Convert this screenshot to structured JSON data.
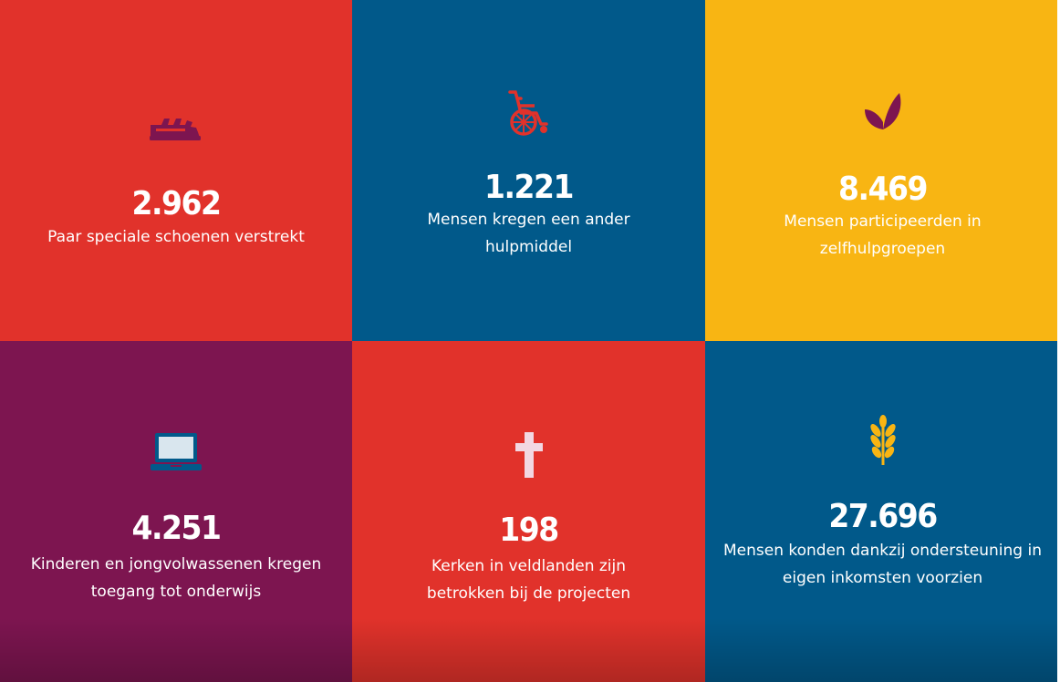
{
  "stats": [
    {
      "number": "2.962",
      "description": "Paar speciale schoenen verstrekt",
      "icon": "sandal-icon",
      "color": "#e1322b"
    },
    {
      "number": "1.221",
      "description": "Mensen kregen een ander hulpmiddel",
      "icon": "wheelchair-icon",
      "color": "#01598a"
    },
    {
      "number": "8.469",
      "description": "Mensen participeerden in zelfhulpgroepen",
      "icon": "leaf-icon",
      "color": "#f8b513"
    },
    {
      "number": "4.251",
      "description": "Kinderen en jongvolwassenen kregen toegang tot onderwijs",
      "icon": "laptop-icon",
      "color": "#7d1550"
    },
    {
      "number": "198",
      "description": "Kerken in veldlanden zijn betrokken bij de projecten",
      "icon": "cross-icon",
      "color": "#e1322b"
    },
    {
      "number": "27.696",
      "description": "Mensen konden dankzij ondersteuning in eigen inkomsten voorzien",
      "icon": "wheat-icon",
      "color": "#01598a"
    }
  ]
}
